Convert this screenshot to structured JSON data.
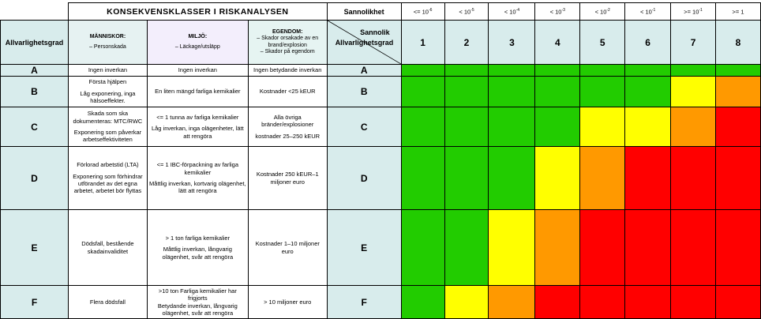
{
  "header": {
    "title": "KONSEKVENSKLASSER I RISKANALYSEN",
    "probability_label": "Sannolikhet",
    "severity_axis_label": "Allvarlighetsgrad",
    "diag_top": "Sannolik",
    "diag_bottom": "Allvarlighetsgrad",
    "categories": {
      "human": {
        "title": "MÄNNISKOR:",
        "desc": "– Personskada"
      },
      "environment": {
        "title": "MILJÖ:",
        "desc": "– Läckage/utsläpp"
      },
      "property": {
        "title": "EGENDOM:",
        "desc1": "– Skador orsakade av en brand/explosion",
        "desc2": "– Skador på egendom"
      }
    },
    "probability_classes": [
      {
        "base": "<= 10",
        "exp": "-6",
        "num": "1"
      },
      {
        "base": "< 10",
        "exp": "-5",
        "num": "2"
      },
      {
        "base": "< 10",
        "exp": "-4",
        "num": "3"
      },
      {
        "base": "< 10",
        "exp": "-3",
        "num": "4"
      },
      {
        "base": "< 10",
        "exp": "-2",
        "num": "5"
      },
      {
        "base": "< 10",
        "exp": "-1",
        "num": "6"
      },
      {
        "base": ">= 10",
        "exp": "-1",
        "num": "7"
      },
      {
        "base": ">= 1",
        "exp": "",
        "num": "8"
      }
    ]
  },
  "rows": [
    {
      "letter": "A",
      "human": [
        "Ingen inverkan"
      ],
      "environment": [
        "Ingen inverkan"
      ],
      "property": [
        "Ingen betydande inverkan"
      ],
      "risk": [
        "green",
        "green",
        "green",
        "green",
        "green",
        "green",
        "green",
        "green"
      ]
    },
    {
      "letter": "B",
      "human": [
        "Första hjälpen",
        "Låg exponering, inga hälsoeffekter."
      ],
      "environment": [
        "En liten mängd farliga kemikalier"
      ],
      "property": [
        "Kostnader <25 kEUR"
      ],
      "risk": [
        "green",
        "green",
        "green",
        "green",
        "green",
        "green",
        "yellow",
        "orange"
      ]
    },
    {
      "letter": "C",
      "human": [
        "Skada som ska dokumenteras: MTC/RWC",
        "Exponering som påverkar arbetseffektiviteten"
      ],
      "environment": [
        "<= 1 tunna av farliga kemikalier",
        "Låg inverkan, inga olägenheter, lätt att rengöra"
      ],
      "property": [
        "Alla övriga bränder/explosioner",
        "kostnader 25–250 kEUR"
      ],
      "risk": [
        "green",
        "green",
        "green",
        "green",
        "yellow",
        "yellow",
        "orange",
        "red"
      ]
    },
    {
      "letter": "D",
      "human": [
        "Förlorad arbetstid (LTA)",
        "Exponering som förhindrar utförandet av det egna arbetet, arbetet bör flyttas"
      ],
      "environment": [
        "<= 1 IBC-förpackning av farliga kemikalier",
        "Måttlig inverkan, kortvarig olägenhet, lätt att rengöra"
      ],
      "property": [
        "Kostnader 250 kEUR–1 miljoner euro"
      ],
      "risk": [
        "green",
        "green",
        "green",
        "yellow",
        "orange",
        "red",
        "red",
        "red"
      ]
    },
    {
      "letter": "E",
      "human": [
        "Dödsfall, bestående skadainvaliditet"
      ],
      "environment": [
        "> 1 ton farliga kemikalier",
        "Måttlig inverkan, långvarig olägenhet, svår att rengöra"
      ],
      "property": [
        "Kostnader 1–10 miljoner euro"
      ],
      "risk": [
        "green",
        "green",
        "yellow",
        "orange",
        "red",
        "red",
        "red",
        "red"
      ]
    },
    {
      "letter": "F",
      "human": [
        "Flera dödsfall"
      ],
      "environment": [
        ">10 ton Farliga kemikalier har frigjorts",
        "Betydande inverkan, långvarig olägenhet, svår att rengöra"
      ],
      "property": [
        "> 10 miljoner euro"
      ],
      "risk": [
        "green",
        "yellow",
        "orange",
        "red",
        "red",
        "red",
        "red",
        "red"
      ]
    }
  ]
}
